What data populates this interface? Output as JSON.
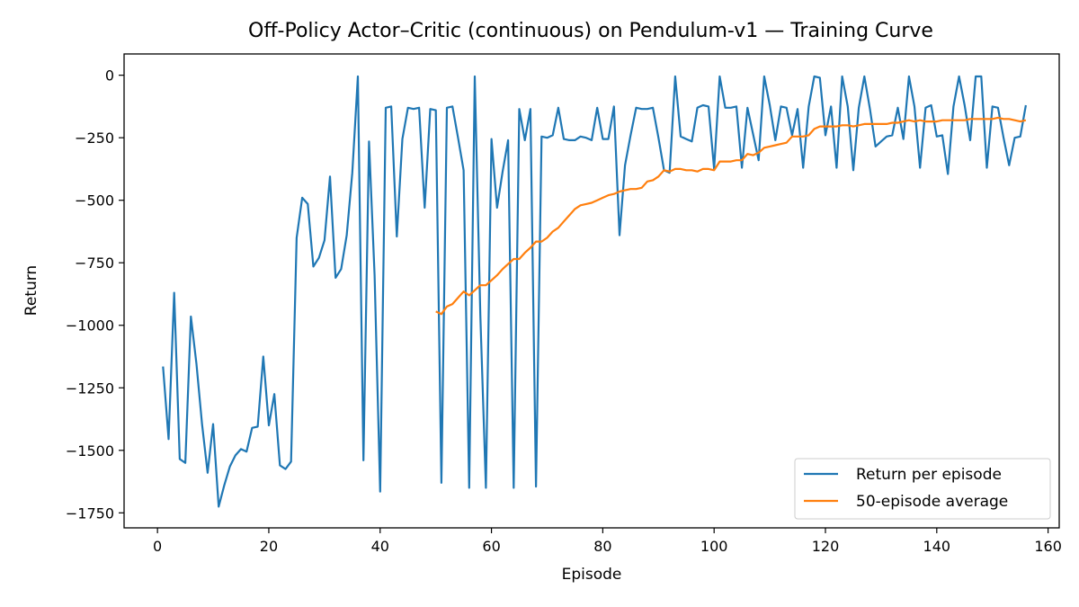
{
  "chart_data": {
    "type": "line",
    "title": "Off-Policy Actor–Critic (continuous) on Pendulum-v1 — Training Curve",
    "xlabel": "Episode",
    "ylabel": "Return",
    "xlim": [
      -6,
      162
    ],
    "ylim": [
      -1810,
      85
    ],
    "xticks": [
      0,
      20,
      40,
      60,
      80,
      100,
      120,
      140,
      160
    ],
    "yticks": [
      0,
      -250,
      -500,
      -750,
      -1000,
      -1250,
      -1500,
      -1750
    ],
    "xtick_labels": [
      "0",
      "20",
      "40",
      "60",
      "80",
      "100",
      "120",
      "140",
      "160"
    ],
    "ytick_labels": [
      "0",
      "−250",
      "−500",
      "−750",
      "−1000",
      "−1250",
      "−1500",
      "−1750"
    ],
    "grid": false,
    "legend_position": "lower-right",
    "series": [
      {
        "name": "Return per episode",
        "color": "#1f77b4",
        "x": [
          1,
          2,
          3,
          4,
          5,
          6,
          7,
          8,
          9,
          10,
          11,
          12,
          13,
          14,
          15,
          16,
          17,
          18,
          19,
          20,
          21,
          22,
          23,
          24,
          25,
          26,
          27,
          28,
          29,
          30,
          31,
          32,
          33,
          34,
          35,
          36,
          37,
          38,
          39,
          40,
          41,
          42,
          43,
          44,
          45,
          46,
          47,
          48,
          49,
          50,
          51,
          52,
          53,
          54,
          55,
          56,
          57,
          58,
          59,
          60,
          61,
          62,
          63,
          64,
          65,
          66,
          67,
          68,
          69,
          70,
          71,
          72,
          73,
          74,
          75,
          76,
          77,
          78,
          79,
          80,
          81,
          82,
          83,
          84,
          85,
          86,
          87,
          88,
          89,
          90,
          91,
          92,
          93,
          94,
          95,
          96,
          97,
          98,
          99,
          100,
          101,
          102,
          103,
          104,
          105,
          106,
          107,
          108,
          109,
          110,
          111,
          112,
          113,
          114,
          115,
          116,
          117,
          118,
          119,
          120,
          121,
          122,
          123,
          124,
          125,
          126,
          127,
          128,
          129,
          130,
          131,
          132,
          133,
          134,
          135,
          136,
          137,
          138,
          139,
          140,
          141,
          142,
          143,
          144,
          145,
          146,
          147,
          148,
          149,
          150,
          151,
          152,
          153,
          154,
          155,
          156
        ],
        "y": [
          -1165,
          -1455,
          -870,
          -1535,
          -1550,
          -965,
          -1155,
          -1395,
          -1590,
          -1395,
          -1725,
          -1640,
          -1565,
          -1520,
          -1495,
          -1505,
          -1410,
          -1405,
          -1125,
          -1400,
          -1275,
          -1560,
          -1575,
          -1545,
          -650,
          -490,
          -515,
          -765,
          -730,
          -660,
          -405,
          -810,
          -775,
          -640,
          -390,
          -5,
          -1540,
          -265,
          -800,
          -1665,
          -130,
          -125,
          -645,
          -255,
          -130,
          -135,
          -130,
          -530,
          -135,
          -140,
          -1630,
          -130,
          -125,
          -250,
          -380,
          -1650,
          -5,
          -960,
          -1650,
          -255,
          -530,
          -385,
          -260,
          -1650,
          -135,
          -260,
          -135,
          -1645,
          -245,
          -250,
          -240,
          -130,
          -255,
          -260,
          -260,
          -245,
          -250,
          -260,
          -130,
          -255,
          -255,
          -125,
          -640,
          -360,
          -240,
          -130,
          -135,
          -135,
          -130,
          -250,
          -380,
          -390,
          -5,
          -245,
          -255,
          -265,
          -130,
          -120,
          -125,
          -375,
          -5,
          -130,
          -130,
          -125,
          -370,
          -130,
          -235,
          -340,
          -5,
          -120,
          -260,
          -125,
          -130,
          -240,
          -135,
          -370,
          -125,
          -5,
          -10,
          -240,
          -125,
          -370,
          -5,
          -125,
          -380,
          -130,
          -5,
          -135,
          -285,
          -265,
          -245,
          -240,
          -130,
          -255,
          -5,
          -125,
          -370,
          -130,
          -120,
          -245,
          -240,
          -395,
          -125,
          -5,
          -120,
          -260,
          -5,
          -5,
          -370,
          -125,
          -130,
          -250,
          -360,
          -250,
          -245,
          -120
        ]
      },
      {
        "name": "50-episode average",
        "color": "#ff7f0e",
        "x": [
          50,
          51,
          52,
          53,
          54,
          55,
          56,
          57,
          58,
          59,
          60,
          61,
          62,
          63,
          64,
          65,
          66,
          67,
          68,
          69,
          70,
          71,
          72,
          73,
          74,
          75,
          76,
          77,
          78,
          79,
          80,
          81,
          82,
          83,
          84,
          85,
          86,
          87,
          88,
          89,
          90,
          91,
          92,
          93,
          94,
          95,
          96,
          97,
          98,
          99,
          100,
          101,
          102,
          103,
          104,
          105,
          106,
          107,
          108,
          109,
          110,
          111,
          112,
          113,
          114,
          115,
          116,
          117,
          118,
          119,
          120,
          121,
          122,
          123,
          124,
          125,
          126,
          127,
          128,
          129,
          130,
          131,
          132,
          133,
          134,
          135,
          136,
          137,
          138,
          139,
          140,
          141,
          142,
          143,
          144,
          145,
          146,
          147,
          148,
          149,
          150,
          151,
          152,
          153,
          154,
          155,
          156
        ],
        "y": [
          -945,
          -955,
          -925,
          -915,
          -890,
          -865,
          -880,
          -860,
          -840,
          -840,
          -820,
          -800,
          -775,
          -755,
          -735,
          -735,
          -710,
          -690,
          -665,
          -665,
          -650,
          -625,
          -610,
          -585,
          -560,
          -535,
          -520,
          -515,
          -510,
          -500,
          -490,
          -480,
          -475,
          -465,
          -460,
          -455,
          -455,
          -450,
          -425,
          -420,
          -405,
          -380,
          -385,
          -375,
          -375,
          -380,
          -380,
          -385,
          -375,
          -375,
          -380,
          -345,
          -345,
          -345,
          -340,
          -340,
          -315,
          -320,
          -310,
          -290,
          -285,
          -280,
          -275,
          -270,
          -245,
          -245,
          -245,
          -240,
          -215,
          -205,
          -205,
          -205,
          -205,
          -200,
          -200,
          -205,
          -200,
          -195,
          -195,
          -195,
          -195,
          -195,
          -190,
          -190,
          -185,
          -180,
          -185,
          -180,
          -185,
          -185,
          -185,
          -180,
          -180,
          -180,
          -180,
          -180,
          -175,
          -175,
          -175,
          -175,
          -175,
          -170,
          -175,
          -175,
          -180,
          -185,
          -180
        ]
      }
    ]
  }
}
